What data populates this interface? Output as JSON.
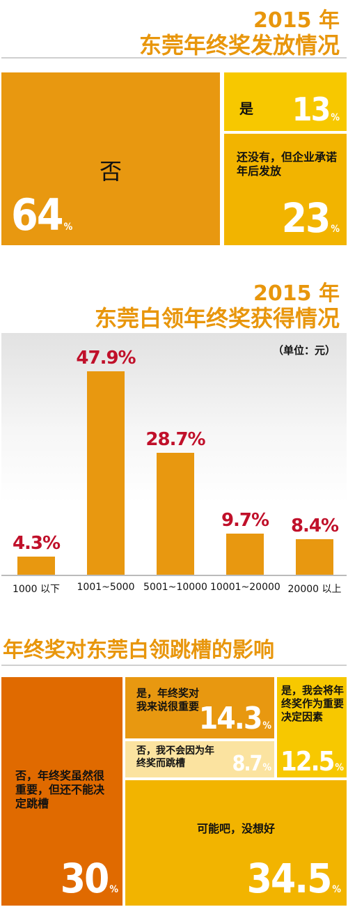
{
  "section1": {
    "year": "2015 年",
    "title": "东莞年终奖发放情况",
    "tiles": [
      {
        "label": "否",
        "value": "64",
        "unit": "%"
      },
      {
        "label": "是",
        "value": "13",
        "unit": "%"
      },
      {
        "label": "还没有，但企业承诺年后发放",
        "value": "23",
        "unit": "%"
      }
    ]
  },
  "section2": {
    "year": "2015 年",
    "title": "东莞白领年终奖获得情况",
    "unit_note": "（单位：元）"
  },
  "chart_data": {
    "type": "bar",
    "categories": [
      "1000 以下",
      "1001~5000",
      "5001~10000",
      "10001~20000",
      "20000 以上"
    ],
    "values": [
      4.3,
      47.9,
      28.7,
      9.7,
      8.4
    ],
    "value_labels": [
      "4.3%",
      "47.9%",
      "28.7%",
      "9.7%",
      "8.4%"
    ],
    "ylim": [
      0,
      50
    ],
    "grid": false,
    "colors": {
      "bar": "#e89810",
      "label": "#c0102a"
    }
  },
  "section3": {
    "title": "年终奖对东莞白领跳槽的影响",
    "tiles": [
      {
        "label": "否，年终奖虽然很重要，但还不能决定跳槽",
        "value": "30",
        "unit": "%"
      },
      {
        "label": "是，年终奖对我来说很重要",
        "value": "14.3",
        "unit": "%"
      },
      {
        "label": "否，我不会因为年终奖而跳槽",
        "value": "8.7",
        "unit": "%"
      },
      {
        "label": "是，我会将年终奖作为重要决定因素",
        "value": "12.5",
        "unit": "%"
      },
      {
        "label": "可能吧，没想好",
        "value": "34.5",
        "unit": "%"
      }
    ]
  }
}
